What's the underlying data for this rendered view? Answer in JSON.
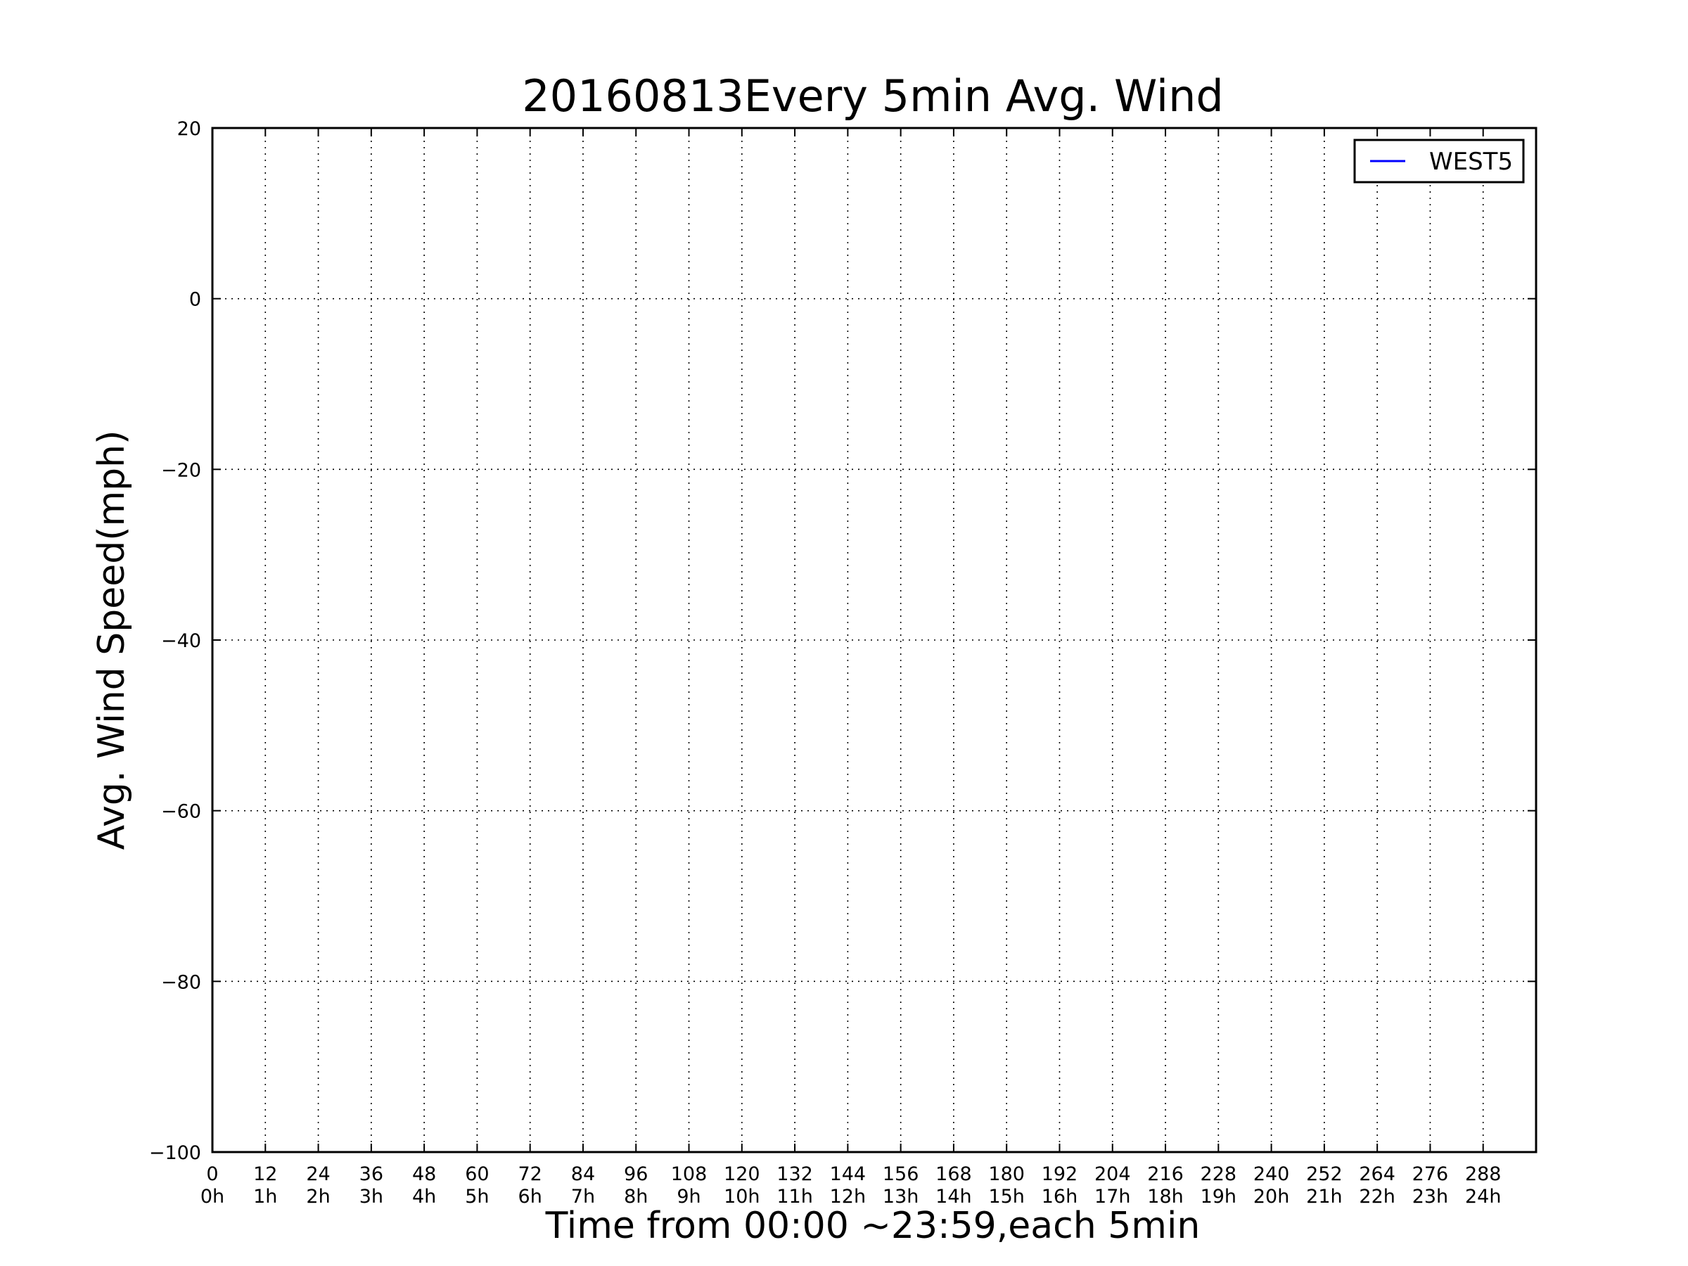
{
  "chart_data": {
    "type": "line",
    "title": "20160813Every 5min Avg. Wind",
    "xlabel": "Time from 00:00 ~23:59,each 5min",
    "ylabel": "Avg. Wind Speed(mph)",
    "xlim": [
      0,
      300
    ],
    "ylim": [
      -100,
      20
    ],
    "grid": true,
    "legend_position": "top-right",
    "x_ticks": [
      {
        "value": 0,
        "label": "0",
        "sublabel": "0h"
      },
      {
        "value": 12,
        "label": "12",
        "sublabel": "1h"
      },
      {
        "value": 24,
        "label": "24",
        "sublabel": "2h"
      },
      {
        "value": 36,
        "label": "36",
        "sublabel": "3h"
      },
      {
        "value": 48,
        "label": "48",
        "sublabel": "4h"
      },
      {
        "value": 60,
        "label": "60",
        "sublabel": "5h"
      },
      {
        "value": 72,
        "label": "72",
        "sublabel": "6h"
      },
      {
        "value": 84,
        "label": "84",
        "sublabel": "7h"
      },
      {
        "value": 96,
        "label": "96",
        "sublabel": "8h"
      },
      {
        "value": 108,
        "label": "108",
        "sublabel": "9h"
      },
      {
        "value": 120,
        "label": "120",
        "sublabel": "10h"
      },
      {
        "value": 132,
        "label": "132",
        "sublabel": "11h"
      },
      {
        "value": 144,
        "label": "144",
        "sublabel": "12h"
      },
      {
        "value": 156,
        "label": "156",
        "sublabel": "13h"
      },
      {
        "value": 168,
        "label": "168",
        "sublabel": "14h"
      },
      {
        "value": 180,
        "label": "180",
        "sublabel": "15h"
      },
      {
        "value": 192,
        "label": "192",
        "sublabel": "16h"
      },
      {
        "value": 204,
        "label": "204",
        "sublabel": "17h"
      },
      {
        "value": 216,
        "label": "216",
        "sublabel": "18h"
      },
      {
        "value": 228,
        "label": "228",
        "sublabel": "19h"
      },
      {
        "value": 240,
        "label": "240",
        "sublabel": "20h"
      },
      {
        "value": 252,
        "label": "252",
        "sublabel": "21h"
      },
      {
        "value": 264,
        "label": "264",
        "sublabel": "22h"
      },
      {
        "value": 276,
        "label": "276",
        "sublabel": "23h"
      },
      {
        "value": 288,
        "label": "288",
        "sublabel": "24h"
      }
    ],
    "y_ticks": [
      {
        "value": 20,
        "label": "20"
      },
      {
        "value": 0,
        "label": "0"
      },
      {
        "value": -20,
        "label": "−20"
      },
      {
        "value": -40,
        "label": "−40"
      },
      {
        "value": -60,
        "label": "−60"
      },
      {
        "value": -80,
        "label": "−80"
      },
      {
        "value": -100,
        "label": "−100"
      }
    ],
    "series": [
      {
        "name": "WEST5",
        "color": "#0000ff",
        "x": [],
        "y": []
      }
    ]
  }
}
